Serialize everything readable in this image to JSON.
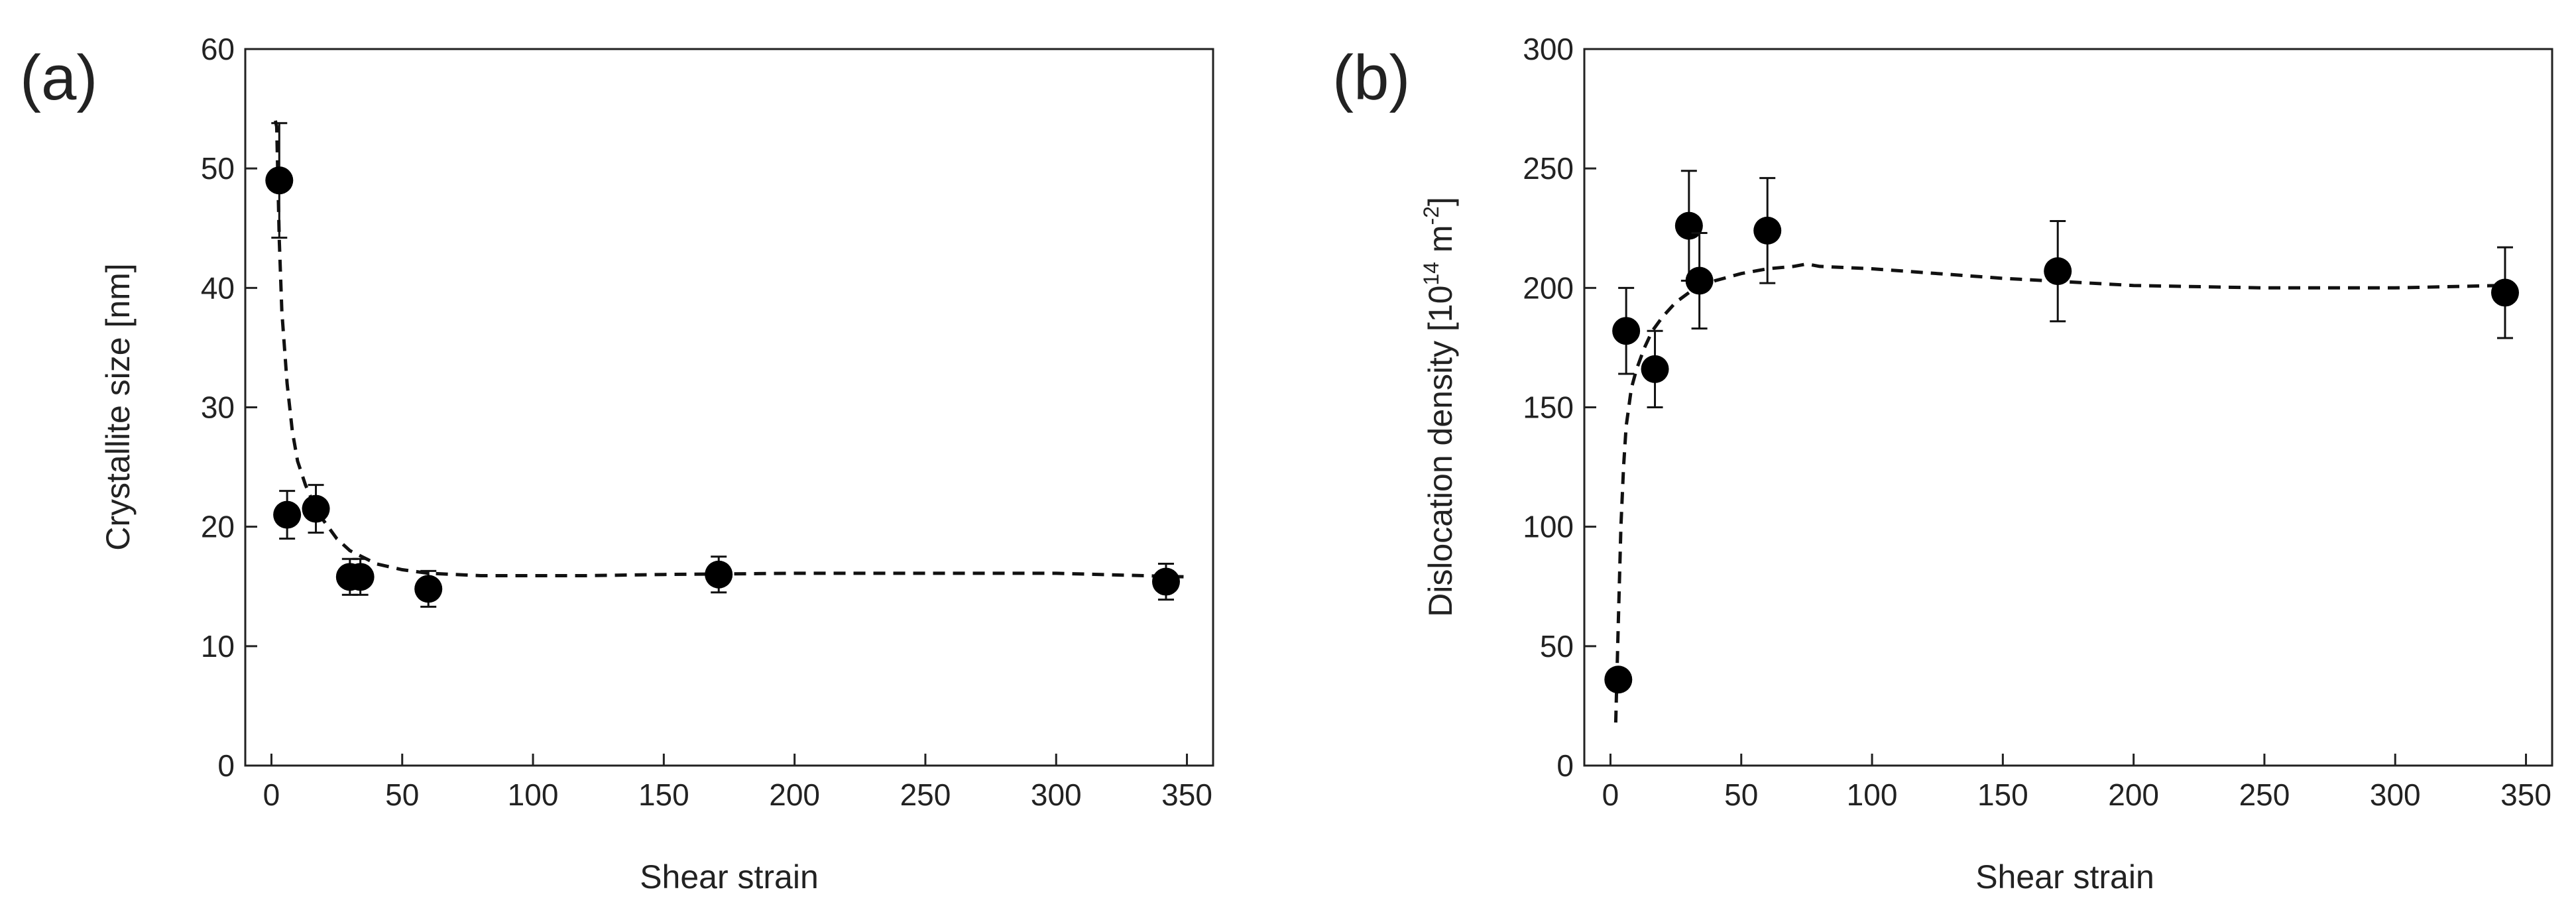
{
  "chart_data": [
    {
      "type": "scatter",
      "panel_label": "(a)",
      "title": "",
      "xlabel": "Shear strain",
      "ylabel": "Crystallite size [nm]",
      "xlim": [
        -10,
        360
      ],
      "ylim": [
        0,
        60
      ],
      "xticks": [
        0,
        50,
        100,
        150,
        200,
        250,
        300,
        350
      ],
      "yticks": [
        0,
        10,
        20,
        30,
        40,
        50,
        60
      ],
      "grid": false,
      "series": [
        {
          "name": "measured",
          "marker": "filled-circle",
          "x": [
            3,
            6,
            17,
            30,
            34,
            60,
            171,
            342
          ],
          "y": [
            49,
            21,
            21.5,
            15.8,
            15.8,
            14.8,
            16,
            15.4
          ],
          "err": [
            4.8,
            2,
            2,
            1.5,
            1.5,
            1.5,
            1.5,
            1.5
          ]
        },
        {
          "name": "fit",
          "style": "dashed",
          "x": [
            1.5,
            2,
            3,
            4,
            6,
            8,
            10,
            13,
            16,
            20,
            25,
            30,
            40,
            50,
            60,
            70,
            80,
            100,
            120,
            150,
            200,
            250,
            300,
            350
          ],
          "y": [
            54,
            53.5,
            44,
            38,
            32,
            28,
            25.5,
            23.5,
            22,
            20.5,
            19,
            18,
            16.9,
            16.4,
            16.1,
            16,
            15.9,
            15.9,
            15.9,
            16,
            16.1,
            16.1,
            16.1,
            15.8
          ]
        }
      ]
    },
    {
      "type": "scatter",
      "panel_label": "(b)",
      "title": "",
      "xlabel": "Shear strain",
      "ylabel": "Dislocation density [10",
      "ylabel_exp": "14",
      "ylabel_unit": " m",
      "ylabel_unit_exp": "-2",
      "ylabel_end": "]",
      "xlim": [
        -10,
        360
      ],
      "ylim": [
        0,
        300
      ],
      "xticks": [
        0,
        50,
        100,
        150,
        200,
        250,
        300,
        350
      ],
      "yticks": [
        0,
        50,
        100,
        150,
        200,
        250,
        300
      ],
      "grid": false,
      "series": [
        {
          "name": "measured",
          "marker": "filled-circle",
          "x": [
            3,
            6,
            17,
            30,
            34,
            60,
            171,
            342
          ],
          "y": [
            36,
            182,
            166,
            226,
            203,
            224,
            207,
            198
          ],
          "err": [
            0,
            18,
            16,
            23,
            20,
            22,
            21,
            19
          ]
        },
        {
          "name": "fit",
          "style": "dashed",
          "x": [
            2,
            3,
            4,
            5,
            6,
            8,
            10,
            13,
            16,
            20,
            25,
            30,
            40,
            50,
            60,
            70,
            75,
            80,
            100,
            150,
            200,
            250,
            300,
            340
          ],
          "y": [
            18,
            60,
            100,
            125,
            142,
            158,
            166,
            175,
            182,
            188,
            194,
            198,
            203,
            206,
            208,
            209,
            210,
            209,
            208,
            204,
            201,
            200,
            200,
            201
          ]
        }
      ]
    }
  ]
}
